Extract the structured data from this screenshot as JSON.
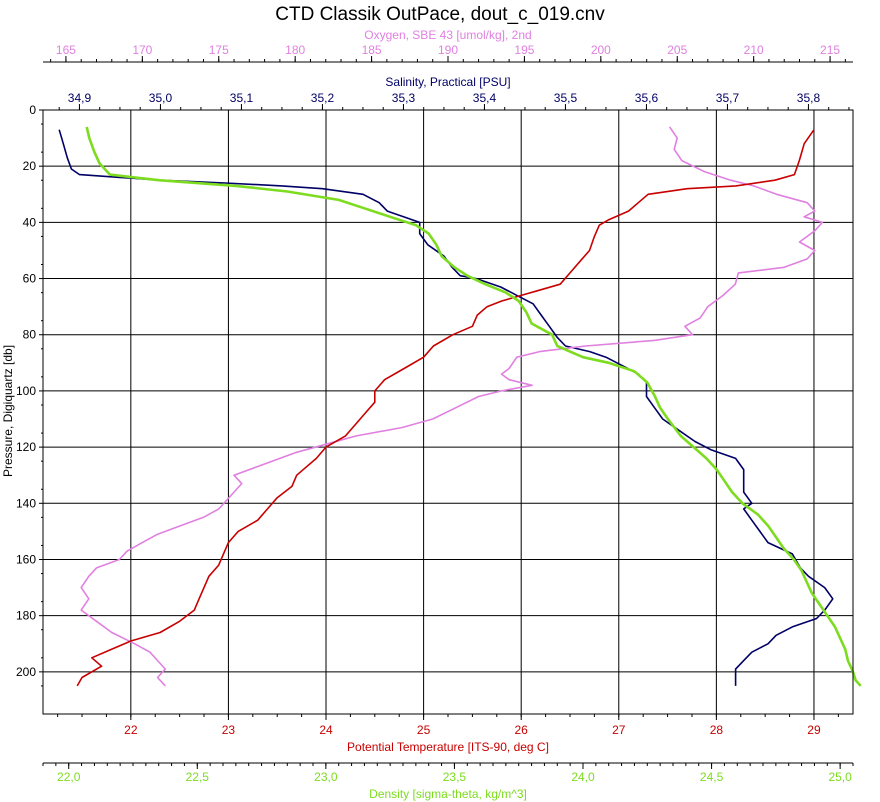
{
  "chart_data": {
    "type": "line",
    "title": "CTD Classik OutPace, dout_c_019.cnv",
    "y_axis": {
      "label": "Pressure, Digiquartz [db]",
      "range": [
        0,
        215
      ],
      "ticks": [
        0,
        20,
        40,
        60,
        80,
        100,
        120,
        140,
        160,
        180,
        200
      ],
      "inverted": true,
      "grid": true
    },
    "x_axes": {
      "oxygen": {
        "label": "Oxygen, SBE 43 [umol/kg], 2nd",
        "color": "#e080e0",
        "position": "top",
        "range": [
          163.5,
          216.5
        ],
        "ticks": [
          165,
          170,
          175,
          180,
          185,
          190,
          195,
          200,
          205,
          210,
          215
        ]
      },
      "salinity": {
        "label": "Salinity, Practical [PSU]",
        "color": "#000066",
        "position": "top",
        "range": [
          34.855,
          35.855
        ],
        "ticks": [
          "34,9",
          "35,0",
          "35,1",
          "35,2",
          "35,3",
          "35,4",
          "35,5",
          "35,6",
          "35,7",
          "35,8"
        ],
        "tick_values": [
          34.9,
          35.0,
          35.1,
          35.2,
          35.3,
          35.4,
          35.5,
          35.6,
          35.7,
          35.8
        ]
      },
      "temperature": {
        "label": "Potential Temperature [ITS-90, deg C]",
        "color": "#c80000",
        "position": "bottom",
        "range": [
          21.1,
          29.4
        ],
        "ticks": [
          22,
          23,
          24,
          25,
          26,
          27,
          28,
          29
        ],
        "grid": true
      },
      "density": {
        "label": "Density [sigma-theta, kg/m^3]",
        "color": "#7ddc1f",
        "position": "bottom",
        "range": [
          21.9,
          25.05
        ],
        "ticks": [
          "22,0",
          "22,5",
          "23,0",
          "23,5",
          "24,0",
          "24,5",
          "25,0"
        ],
        "tick_values": [
          22.0,
          22.5,
          23.0,
          23.5,
          24.0,
          24.5,
          25.0
        ]
      }
    },
    "series": [
      {
        "key": "salinity",
        "color": "#000066",
        "points": [
          [
            34.875,
            7
          ],
          [
            34.88,
            12
          ],
          [
            34.885,
            17
          ],
          [
            34.89,
            21
          ],
          [
            34.9,
            23
          ],
          [
            34.95,
            24
          ],
          [
            35.0,
            25
          ],
          [
            35.08,
            26
          ],
          [
            35.15,
            27
          ],
          [
            35.2,
            28
          ],
          [
            35.25,
            30
          ],
          [
            35.27,
            33
          ],
          [
            35.28,
            36
          ],
          [
            35.3,
            38
          ],
          [
            35.32,
            40
          ],
          [
            35.32,
            44
          ],
          [
            35.33,
            48
          ],
          [
            35.35,
            52
          ],
          [
            35.36,
            56
          ],
          [
            35.37,
            59
          ],
          [
            35.39,
            60
          ],
          [
            35.42,
            63
          ],
          [
            35.44,
            66
          ],
          [
            35.46,
            69
          ],
          [
            35.47,
            73
          ],
          [
            35.48,
            77
          ],
          [
            35.49,
            81
          ],
          [
            35.5,
            84
          ],
          [
            35.53,
            86
          ],
          [
            35.55,
            88
          ],
          [
            35.57,
            91
          ],
          [
            35.59,
            94
          ],
          [
            35.6,
            97
          ],
          [
            35.6,
            102
          ],
          [
            35.61,
            106
          ],
          [
            35.62,
            110
          ],
          [
            35.64,
            114
          ],
          [
            35.66,
            118
          ],
          [
            35.68,
            121
          ],
          [
            35.71,
            124
          ],
          [
            35.72,
            128
          ],
          [
            35.72,
            132
          ],
          [
            35.72,
            136
          ],
          [
            35.73,
            140
          ],
          [
            35.72,
            142
          ],
          [
            35.73,
            146
          ],
          [
            35.74,
            150
          ],
          [
            35.75,
            154
          ],
          [
            35.78,
            158
          ],
          [
            35.79,
            163
          ],
          [
            35.8,
            166
          ],
          [
            35.82,
            170
          ],
          [
            35.83,
            174
          ],
          [
            35.82,
            178
          ],
          [
            35.81,
            181
          ],
          [
            35.78,
            184
          ],
          [
            35.76,
            187
          ],
          [
            35.75,
            190
          ],
          [
            35.73,
            193
          ],
          [
            35.72,
            196
          ],
          [
            35.71,
            199
          ],
          [
            35.71,
            202
          ],
          [
            35.71,
            205
          ]
        ]
      },
      {
        "key": "oxygen",
        "color": "#e080e0",
        "points": [
          [
            204.5,
            6
          ],
          [
            205,
            10
          ],
          [
            204.8,
            14
          ],
          [
            205.3,
            18
          ],
          [
            206.8,
            22
          ],
          [
            208.5,
            25
          ],
          [
            210,
            27
          ],
          [
            211.5,
            30
          ],
          [
            213.5,
            33
          ],
          [
            214,
            36
          ],
          [
            213.3,
            38
          ],
          [
            214.5,
            40
          ],
          [
            214,
            43
          ],
          [
            213.5,
            45
          ],
          [
            213,
            47
          ],
          [
            214,
            50
          ],
          [
            213.5,
            53
          ],
          [
            212,
            56
          ],
          [
            209,
            58
          ],
          [
            208.8,
            62
          ],
          [
            208,
            66
          ],
          [
            207,
            70
          ],
          [
            206.5,
            74
          ],
          [
            205.5,
            77
          ],
          [
            206,
            80
          ],
          [
            203.5,
            82
          ],
          [
            199,
            84
          ],
          [
            196,
            86
          ],
          [
            194.5,
            88
          ],
          [
            194,
            92
          ],
          [
            193.5,
            94
          ],
          [
            194,
            96
          ],
          [
            195.5,
            98
          ],
          [
            193.5,
            100
          ],
          [
            192,
            102
          ],
          [
            190.5,
            106
          ],
          [
            189,
            110
          ],
          [
            187,
            113
          ],
          [
            184,
            116
          ],
          [
            182,
            119
          ],
          [
            180,
            122
          ],
          [
            179,
            124
          ],
          [
            177.5,
            127
          ],
          [
            176,
            130
          ],
          [
            176.5,
            133
          ],
          [
            176,
            136
          ],
          [
            175.5,
            139
          ],
          [
            175,
            142
          ],
          [
            174,
            145
          ],
          [
            172.5,
            148
          ],
          [
            171,
            151
          ],
          [
            170,
            154
          ],
          [
            169,
            157
          ],
          [
            168.5,
            160
          ],
          [
            167,
            163
          ],
          [
            166.5,
            166
          ],
          [
            166,
            170
          ],
          [
            166.5,
            174
          ],
          [
            166,
            178
          ],
          [
            167,
            182
          ],
          [
            168,
            186
          ],
          [
            169.5,
            190
          ],
          [
            170.5,
            193
          ],
          [
            171,
            196
          ],
          [
            171.5,
            199
          ],
          [
            171,
            202
          ],
          [
            171.5,
            205
          ]
        ]
      },
      {
        "key": "temperature",
        "color": "#c80000",
        "points": [
          [
            29.0,
            7
          ],
          [
            28.9,
            12
          ],
          [
            28.85,
            18
          ],
          [
            28.8,
            23
          ],
          [
            28.6,
            25
          ],
          [
            28.2,
            27
          ],
          [
            27.7,
            28
          ],
          [
            27.3,
            30
          ],
          [
            27.2,
            33
          ],
          [
            27.1,
            36
          ],
          [
            26.9,
            39
          ],
          [
            26.8,
            41
          ],
          [
            26.75,
            45
          ],
          [
            26.7,
            50
          ],
          [
            26.6,
            54
          ],
          [
            26.5,
            58
          ],
          [
            26.4,
            62
          ],
          [
            26.2,
            64
          ],
          [
            26.0,
            66
          ],
          [
            25.8,
            68
          ],
          [
            25.65,
            70
          ],
          [
            25.55,
            73
          ],
          [
            25.5,
            77
          ],
          [
            25.3,
            80
          ],
          [
            25.1,
            84
          ],
          [
            25.0,
            88
          ],
          [
            24.8,
            92
          ],
          [
            24.6,
            96
          ],
          [
            24.5,
            100
          ],
          [
            24.5,
            104
          ],
          [
            24.4,
            108
          ],
          [
            24.3,
            112
          ],
          [
            24.2,
            116
          ],
          [
            24.0,
            120
          ],
          [
            23.9,
            124
          ],
          [
            23.8,
            127
          ],
          [
            23.7,
            130
          ],
          [
            23.65,
            134
          ],
          [
            23.5,
            138
          ],
          [
            23.4,
            142
          ],
          [
            23.3,
            146
          ],
          [
            23.1,
            150
          ],
          [
            23.0,
            154
          ],
          [
            22.95,
            158
          ],
          [
            22.9,
            162
          ],
          [
            22.8,
            166
          ],
          [
            22.75,
            170
          ],
          [
            22.7,
            174
          ],
          [
            22.65,
            178
          ],
          [
            22.5,
            182
          ],
          [
            22.3,
            186
          ],
          [
            22.0,
            189
          ],
          [
            21.8,
            192
          ],
          [
            21.6,
            195
          ],
          [
            21.7,
            198
          ],
          [
            21.5,
            202
          ],
          [
            21.45,
            205
          ]
        ]
      },
      {
        "key": "density",
        "color": "#7ddc1f",
        "points": [
          [
            22.07,
            6
          ],
          [
            22.08,
            10
          ],
          [
            22.1,
            15
          ],
          [
            22.12,
            19
          ],
          [
            22.16,
            23
          ],
          [
            22.35,
            25
          ],
          [
            22.65,
            27
          ],
          [
            22.85,
            29
          ],
          [
            23.05,
            32
          ],
          [
            23.15,
            35
          ],
          [
            23.25,
            38
          ],
          [
            23.35,
            41
          ],
          [
            23.4,
            44
          ],
          [
            23.43,
            48
          ],
          [
            23.45,
            52
          ],
          [
            23.5,
            56
          ],
          [
            23.55,
            59
          ],
          [
            23.62,
            62
          ],
          [
            23.7,
            65
          ],
          [
            23.75,
            68
          ],
          [
            23.78,
            72
          ],
          [
            23.8,
            76
          ],
          [
            23.88,
            80
          ],
          [
            23.9,
            84
          ],
          [
            24.0,
            88
          ],
          [
            24.1,
            90
          ],
          [
            24.2,
            93
          ],
          [
            24.25,
            97
          ],
          [
            24.28,
            102
          ],
          [
            24.3,
            106
          ],
          [
            24.33,
            110
          ],
          [
            24.38,
            116
          ],
          [
            24.43,
            120
          ],
          [
            24.48,
            124
          ],
          [
            24.52,
            128
          ],
          [
            24.55,
            132
          ],
          [
            24.58,
            136
          ],
          [
            24.62,
            140
          ],
          [
            24.68,
            144
          ],
          [
            24.72,
            148
          ],
          [
            24.75,
            152
          ],
          [
            24.78,
            156
          ],
          [
            24.82,
            160
          ],
          [
            24.85,
            164
          ],
          [
            24.87,
            168
          ],
          [
            24.89,
            172
          ],
          [
            24.92,
            176
          ],
          [
            24.95,
            180
          ],
          [
            24.98,
            184
          ],
          [
            25.0,
            188
          ],
          [
            25.02,
            192
          ],
          [
            25.03,
            196
          ],
          [
            25.05,
            200
          ],
          [
            25.06,
            203
          ],
          [
            25.08,
            205
          ]
        ]
      }
    ]
  }
}
